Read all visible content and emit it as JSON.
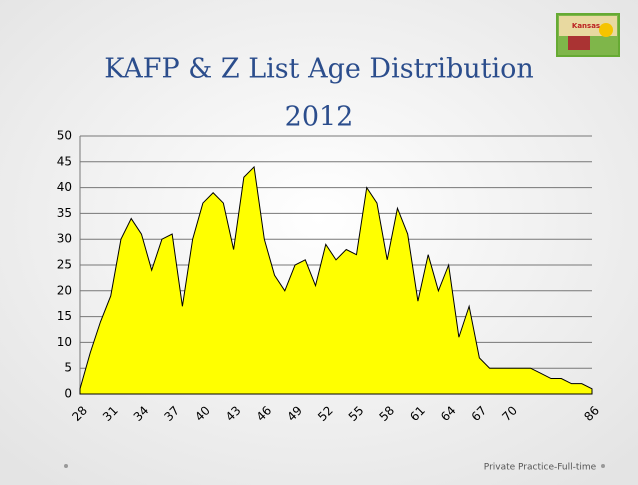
{
  "chart_data": {
    "type": "area",
    "title": "KAFP & Z List Age Distribution",
    "subtitle": "2012",
    "footer": "Private Practice-Full-time",
    "logo_text": "Kansas",
    "categories": [
      28,
      null,
      null,
      31,
      null,
      null,
      34,
      null,
      null,
      37,
      null,
      null,
      40,
      null,
      null,
      43,
      null,
      null,
      46,
      null,
      null,
      49,
      null,
      null,
      52,
      null,
      null,
      55,
      null,
      null,
      58,
      null,
      null,
      61,
      null,
      null,
      64,
      null,
      null,
      67,
      null,
      null,
      70,
      null,
      null,
      null,
      null,
      null,
      null,
      null,
      86
    ],
    "values": [
      1,
      8,
      14,
      19,
      30,
      34,
      31,
      24,
      30,
      31,
      17,
      30,
      37,
      39,
      37,
      28,
      42,
      44,
      30,
      23,
      20,
      25,
      26,
      21,
      29,
      26,
      28,
      27,
      40,
      37,
      26,
      36,
      31,
      18,
      27,
      20,
      25,
      11,
      17,
      7,
      5,
      5,
      5,
      5,
      5,
      4,
      3,
      3,
      2,
      2,
      1
    ],
    "color": "#ffff00",
    "ylim": [
      0,
      50
    ],
    "yticks": [
      0,
      5,
      10,
      15,
      20,
      25,
      30,
      35,
      40,
      45,
      50
    ],
    "grid": true
  }
}
